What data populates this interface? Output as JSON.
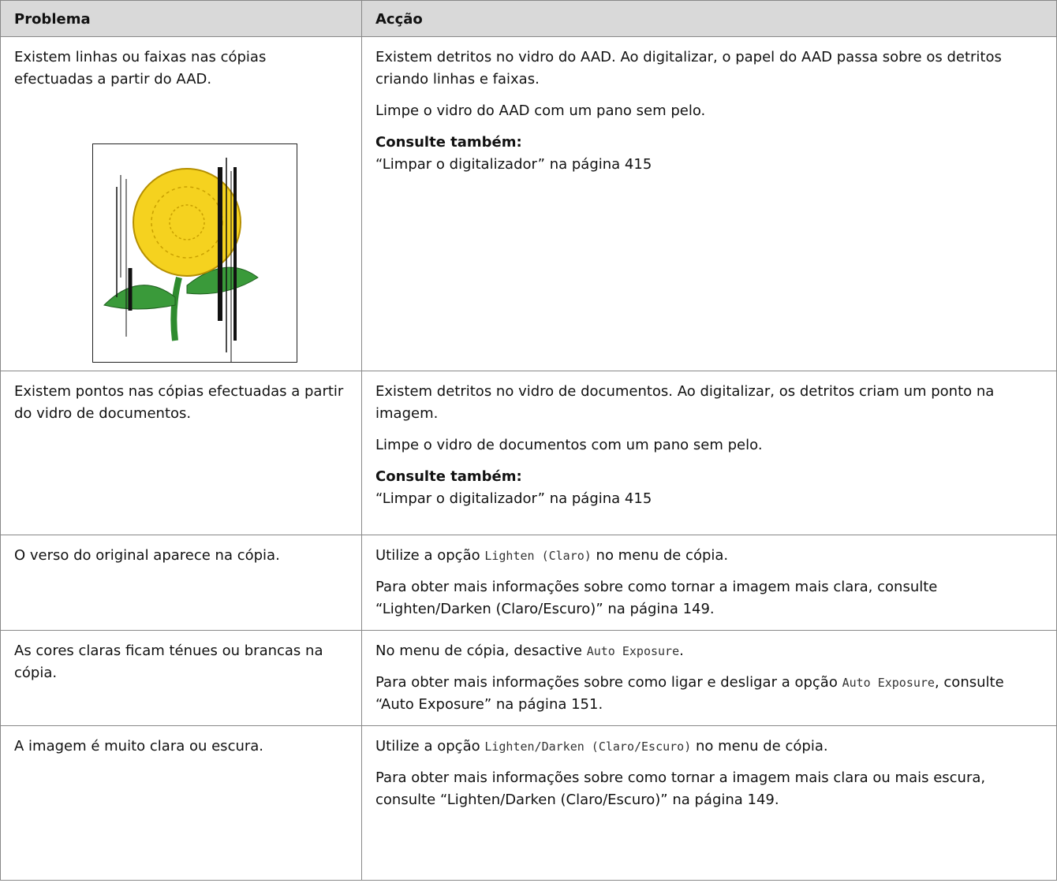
{
  "table": {
    "headers": [
      "Problema",
      "Acção"
    ],
    "rows": [
      {
        "problem": "Existem linhas ou faixas nas cópias efectuadas a partir do AAD.",
        "action": [
          {
            "runs": [
              {
                "text": "Existem detritos no vidro do AAD. Ao digitalizar, o papel do AAD passa sobre os detritos criando linhas e faixas."
              }
            ]
          },
          {
            "runs": [
              {
                "text": "Limpe o vidro do AAD com um pano sem pelo."
              }
            ]
          },
          {
            "see_also": "Consulte também:",
            "ref": "“Limpar o digitalizador” na página 415"
          }
        ]
      },
      {
        "problem": "Existem pontos nas cópias efectuadas a partir do vidro de documentos.",
        "action": [
          {
            "runs": [
              {
                "text": "Existem detritos no vidro de documentos. Ao digitalizar, os detritos criam um ponto na imagem."
              }
            ]
          },
          {
            "runs": [
              {
                "text": "Limpe o vidro de documentos com um pano sem pelo."
              }
            ]
          },
          {
            "see_also": "Consulte também:",
            "ref": "“Limpar o digitalizador” na página 415"
          }
        ]
      },
      {
        "problem": "O verso do original aparece na cópia.",
        "action": [
          {
            "runs": [
              {
                "text": "Utilize a opção "
              },
              {
                "text": "Lighten (Claro)",
                "code": true
              },
              {
                "text": " no menu de cópia."
              }
            ]
          },
          {
            "runs": [
              {
                "text": "Para obter mais informações sobre como tornar a imagem mais clara, consulte “Lighten/Darken (Claro/Escuro)” na página 149."
              }
            ]
          }
        ]
      },
      {
        "problem": "As cores claras ficam ténues ou brancas na cópia.",
        "action": [
          {
            "runs": [
              {
                "text": "No menu de cópia, desactive "
              },
              {
                "text": "Auto Exposure",
                "code": true
              },
              {
                "text": "."
              }
            ]
          },
          {
            "runs": [
              {
                "text": "Para obter mais informações sobre como ligar e desligar a opção "
              },
              {
                "text": "Auto Exposure",
                "code": true
              },
              {
                "text": ", consulte “Auto Exposure” na página 151."
              }
            ]
          }
        ]
      },
      {
        "problem": "A imagem é muito clara ou escura.",
        "action": [
          {
            "runs": [
              {
                "text": "Utilize a opção "
              },
              {
                "text": "Lighten/Darken (Claro/Escuro)",
                "code": true
              },
              {
                "text": " no menu de cópia."
              }
            ]
          },
          {
            "runs": [
              {
                "text": "Para obter mais informações sobre como tornar a imagem mais clara ou mais escura, consulte “Lighten/Darken (Claro/Escuro)” na página 149."
              }
            ]
          }
        ]
      }
    ]
  }
}
